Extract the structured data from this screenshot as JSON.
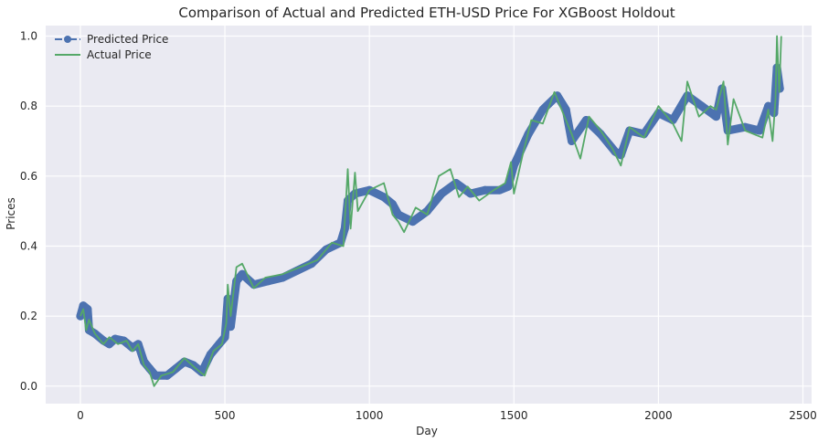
{
  "chart_data": {
    "type": "line",
    "title": "Comparison of Actual and Predicted ETH-USD Price For XGBoost Holdout",
    "xlabel": "Day",
    "ylabel": "Prices",
    "xlim": [
      -120,
      2530
    ],
    "ylim": [
      -0.05,
      1.03
    ],
    "x_ticks": [
      0,
      500,
      1000,
      1500,
      2000,
      2500
    ],
    "y_ticks": [
      0.0,
      0.2,
      0.4,
      0.6,
      0.8,
      1.0
    ],
    "x_tick_labels": [
      "0",
      "500",
      "1000",
      "1500",
      "2000",
      "2500"
    ],
    "y_tick_labels": [
      "0.0",
      "0.2",
      "0.4",
      "0.6",
      "0.8",
      "1.0"
    ],
    "grid": true,
    "background": "#eaeaf2",
    "legend": "top-left",
    "series": [
      {
        "name": "Predicted Price",
        "color": "#4c72b0",
        "style": "dash-dot with circle markers",
        "points": [
          [
            0,
            0.2
          ],
          [
            10,
            0.23
          ],
          [
            25,
            0.22
          ],
          [
            30,
            0.16
          ],
          [
            50,
            0.15
          ],
          [
            80,
            0.13
          ],
          [
            100,
            0.12
          ],
          [
            120,
            0.135
          ],
          [
            150,
            0.13
          ],
          [
            180,
            0.11
          ],
          [
            200,
            0.12
          ],
          [
            220,
            0.07
          ],
          [
            240,
            0.05
          ],
          [
            260,
            0.03
          ],
          [
            300,
            0.03
          ],
          [
            330,
            0.05
          ],
          [
            360,
            0.07
          ],
          [
            390,
            0.06
          ],
          [
            420,
            0.04
          ],
          [
            450,
            0.09
          ],
          [
            480,
            0.12
          ],
          [
            500,
            0.14
          ],
          [
            510,
            0.25
          ],
          [
            520,
            0.17
          ],
          [
            540,
            0.3
          ],
          [
            560,
            0.32
          ],
          [
            600,
            0.29
          ],
          [
            650,
            0.3
          ],
          [
            700,
            0.31
          ],
          [
            750,
            0.33
          ],
          [
            800,
            0.35
          ],
          [
            850,
            0.39
          ],
          [
            900,
            0.41
          ],
          [
            915,
            0.45
          ],
          [
            925,
            0.53
          ],
          [
            950,
            0.55
          ],
          [
            1000,
            0.56
          ],
          [
            1050,
            0.54
          ],
          [
            1080,
            0.52
          ],
          [
            1100,
            0.49
          ],
          [
            1150,
            0.47
          ],
          [
            1200,
            0.5
          ],
          [
            1250,
            0.55
          ],
          [
            1300,
            0.58
          ],
          [
            1350,
            0.55
          ],
          [
            1400,
            0.56
          ],
          [
            1450,
            0.56
          ],
          [
            1480,
            0.57
          ],
          [
            1500,
            0.63
          ],
          [
            1550,
            0.72
          ],
          [
            1600,
            0.79
          ],
          [
            1650,
            0.83
          ],
          [
            1680,
            0.79
          ],
          [
            1700,
            0.7
          ],
          [
            1750,
            0.76
          ],
          [
            1800,
            0.72
          ],
          [
            1850,
            0.67
          ],
          [
            1870,
            0.66
          ],
          [
            1900,
            0.73
          ],
          [
            1950,
            0.72
          ],
          [
            2000,
            0.78
          ],
          [
            2050,
            0.76
          ],
          [
            2100,
            0.83
          ],
          [
            2150,
            0.8
          ],
          [
            2200,
            0.77
          ],
          [
            2220,
            0.85
          ],
          [
            2240,
            0.73
          ],
          [
            2300,
            0.74
          ],
          [
            2350,
            0.73
          ],
          [
            2380,
            0.8
          ],
          [
            2400,
            0.78
          ],
          [
            2410,
            0.91
          ],
          [
            2420,
            0.85
          ]
        ]
      },
      {
        "name": "Actual Price",
        "color": "#55a868",
        "style": "solid",
        "points": [
          [
            0,
            0.2
          ],
          [
            10,
            0.22
          ],
          [
            20,
            0.16
          ],
          [
            30,
            0.19
          ],
          [
            50,
            0.15
          ],
          [
            80,
            0.12
          ],
          [
            100,
            0.14
          ],
          [
            130,
            0.12
          ],
          [
            160,
            0.13
          ],
          [
            180,
            0.1
          ],
          [
            200,
            0.12
          ],
          [
            220,
            0.06
          ],
          [
            240,
            0.04
          ],
          [
            255,
            0.0
          ],
          [
            280,
            0.03
          ],
          [
            320,
            0.04
          ],
          [
            360,
            0.08
          ],
          [
            400,
            0.05
          ],
          [
            430,
            0.03
          ],
          [
            460,
            0.1
          ],
          [
            490,
            0.12
          ],
          [
            505,
            0.18
          ],
          [
            510,
            0.29
          ],
          [
            520,
            0.2
          ],
          [
            540,
            0.34
          ],
          [
            560,
            0.35
          ],
          [
            600,
            0.28
          ],
          [
            640,
            0.31
          ],
          [
            700,
            0.32
          ],
          [
            760,
            0.34
          ],
          [
            820,
            0.36
          ],
          [
            870,
            0.41
          ],
          [
            910,
            0.4
          ],
          [
            925,
            0.62
          ],
          [
            935,
            0.45
          ],
          [
            950,
            0.61
          ],
          [
            960,
            0.5
          ],
          [
            1000,
            0.56
          ],
          [
            1050,
            0.58
          ],
          [
            1080,
            0.49
          ],
          [
            1100,
            0.47
          ],
          [
            1120,
            0.44
          ],
          [
            1160,
            0.51
          ],
          [
            1200,
            0.49
          ],
          [
            1240,
            0.6
          ],
          [
            1280,
            0.62
          ],
          [
            1310,
            0.54
          ],
          [
            1340,
            0.57
          ],
          [
            1380,
            0.53
          ],
          [
            1430,
            0.56
          ],
          [
            1470,
            0.58
          ],
          [
            1490,
            0.64
          ],
          [
            1500,
            0.55
          ],
          [
            1530,
            0.66
          ],
          [
            1560,
            0.76
          ],
          [
            1600,
            0.75
          ],
          [
            1640,
            0.84
          ],
          [
            1680,
            0.76
          ],
          [
            1700,
            0.72
          ],
          [
            1730,
            0.65
          ],
          [
            1760,
            0.77
          ],
          [
            1800,
            0.73
          ],
          [
            1840,
            0.68
          ],
          [
            1870,
            0.63
          ],
          [
            1900,
            0.74
          ],
          [
            1950,
            0.71
          ],
          [
            2000,
            0.8
          ],
          [
            2050,
            0.75
          ],
          [
            2080,
            0.7
          ],
          [
            2100,
            0.87
          ],
          [
            2140,
            0.77
          ],
          [
            2180,
            0.8
          ],
          [
            2200,
            0.79
          ],
          [
            2225,
            0.87
          ],
          [
            2240,
            0.69
          ],
          [
            2260,
            0.82
          ],
          [
            2300,
            0.73
          ],
          [
            2360,
            0.71
          ],
          [
            2380,
            0.79
          ],
          [
            2395,
            0.7
          ],
          [
            2405,
            0.82
          ],
          [
            2410,
            1.0
          ],
          [
            2418,
            0.84
          ],
          [
            2425,
            1.0
          ]
        ]
      }
    ]
  }
}
